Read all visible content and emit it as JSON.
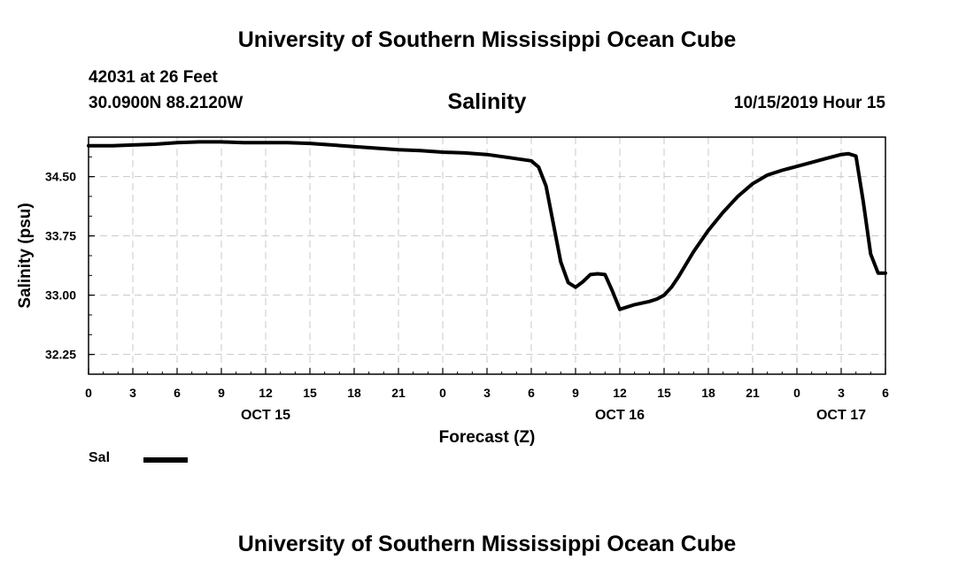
{
  "header": {
    "title": "University of Southern Mississippi Ocean Cube",
    "station": "42031 at 26 Feet",
    "coords": "30.0900N 88.2120W",
    "chart_title": "Salinity",
    "issued": "10/15/2019 Hour 15"
  },
  "footer": {
    "title": "University of Southern Mississippi Ocean Cube"
  },
  "legend": {
    "label": "Sal"
  },
  "colors": {
    "line": "#000000",
    "grid": "#c8c8c8",
    "frame": "#000000"
  },
  "chart_data": {
    "type": "line",
    "title": "Salinity",
    "xlabel": "Forecast (Z)",
    "ylabel": "Salinity (psu)",
    "x_unit": "hours from Oct 15 00Z",
    "xlim": [
      0,
      54
    ],
    "ylim": [
      32.0,
      35.0
    ],
    "grid": true,
    "x_ticks": [
      0,
      3,
      6,
      9,
      12,
      15,
      18,
      21,
      24,
      27,
      30,
      33,
      36,
      39,
      42,
      45,
      48,
      51,
      54
    ],
    "x_tick_labels": [
      "0",
      "3",
      "6",
      "9",
      "12",
      "15",
      "18",
      "21",
      "0",
      "3",
      "6",
      "9",
      "12",
      "15",
      "18",
      "21",
      "0",
      "3",
      "6"
    ],
    "y_ticks": [
      32.25,
      33.0,
      33.75,
      34.5
    ],
    "y_tick_labels": [
      "32.25",
      "33.00",
      "33.75",
      "34.50"
    ],
    "date_labels": [
      {
        "x": 12,
        "label": "OCT 15"
      },
      {
        "x": 36,
        "label": "OCT 16"
      },
      {
        "x": 51,
        "label": "OCT 17"
      }
    ],
    "series": [
      {
        "name": "Sal",
        "x": [
          0,
          1.5,
          3,
          4.5,
          6,
          7.5,
          9,
          10.5,
          12,
          13.5,
          15,
          16.5,
          18,
          19.5,
          21,
          22.5,
          24,
          25.5,
          27,
          28.5,
          30,
          30.5,
          31,
          31.5,
          32,
          32.5,
          33,
          33.5,
          34,
          34.5,
          35,
          35.5,
          36,
          37,
          38,
          38.5,
          39,
          39.5,
          40,
          41,
          42,
          43,
          44,
          45,
          46,
          47,
          48,
          49,
          50,
          51,
          51.5,
          52,
          52.5,
          53,
          53.5,
          54
        ],
        "values": [
          34.89,
          34.89,
          34.9,
          34.91,
          34.93,
          34.94,
          34.94,
          34.93,
          34.93,
          34.93,
          34.92,
          34.9,
          34.88,
          34.86,
          34.84,
          34.83,
          34.81,
          34.8,
          34.78,
          34.74,
          34.7,
          34.62,
          34.38,
          33.9,
          33.42,
          33.16,
          33.1,
          33.17,
          33.26,
          33.27,
          33.26,
          33.05,
          32.82,
          32.88,
          32.92,
          32.95,
          33.0,
          33.1,
          33.24,
          33.55,
          33.82,
          34.05,
          34.25,
          34.41,
          34.52,
          34.58,
          34.63,
          34.68,
          34.73,
          34.78,
          34.79,
          34.76,
          34.18,
          33.52,
          33.28,
          33.28
        ]
      }
    ]
  }
}
